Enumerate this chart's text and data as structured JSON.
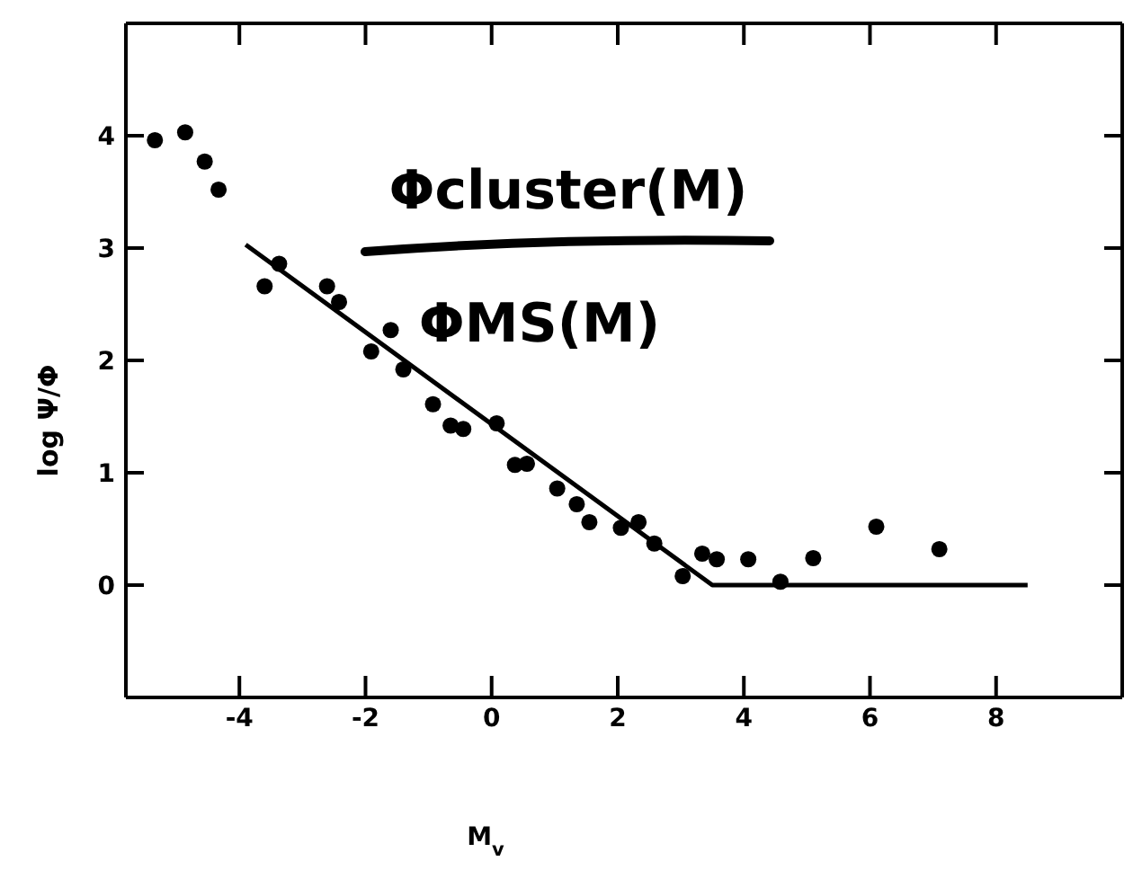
{
  "chart_data": {
    "type": "scatter",
    "xlabel": "M$_{v}$",
    "ylabel": "log Ψ/Φ",
    "annotations": [
      "Φcluster(M)",
      "ΦMS(M)"
    ],
    "xlim": [
      -5.8,
      10
    ],
    "xticks": [
      -4,
      -2,
      0,
      2,
      4,
      6,
      8
    ],
    "ylim": [
      -1,
      5
    ],
    "yticks": [
      0,
      1,
      2,
      3,
      4
    ],
    "grid": false,
    "marker": "circle",
    "series": [
      {
        "color": "#000000",
        "x": [
          -5.34,
          -4.86,
          -4.55,
          -4.33,
          -3.6,
          -3.37,
          -2.61,
          -2.42,
          -1.6,
          -1.91,
          -1.4,
          -0.93,
          -0.65,
          -0.45,
          0.08,
          0.37,
          0.56,
          1.04,
          1.35,
          1.55,
          2.05,
          2.33,
          2.58,
          3.03,
          3.34,
          3.57,
          4.07,
          4.58,
          5.1,
          6.1,
          7.1
        ],
        "values": [
          3.96,
          4.03,
          3.77,
          3.52,
          2.66,
          2.86,
          2.66,
          2.52,
          2.27,
          2.08,
          1.92,
          1.61,
          1.42,
          1.39,
          1.44,
          1.07,
          1.08,
          0.86,
          0.72,
          0.56,
          0.51,
          0.56,
          0.37,
          0.08,
          0.28,
          0.23,
          0.23,
          0.03,
          0.24,
          0.52,
          0.32
        ]
      },
      {
        "type": "line",
        "color": "#000000",
        "marker": "none",
        "x": [
          -3.9,
          3.5,
          8.5
        ],
        "values": [
          3.03,
          0,
          0
        ]
      }
    ]
  }
}
